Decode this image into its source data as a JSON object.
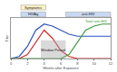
{
  "chart_data": {
    "type": "line",
    "x": [
      0,
      1,
      2,
      3,
      4,
      5,
      6,
      7,
      8,
      9,
      10,
      11,
      12
    ],
    "series": [
      {
        "color": "#d42a2a",
        "values": [
          0,
          0,
          1,
          4,
          7,
          5,
          2,
          0.5,
          0,
          0,
          0,
          0,
          0
        ]
      },
      {
        "color": "#2a52be",
        "values": [
          0,
          0.5,
          3,
          7,
          8.5,
          8,
          7,
          6,
          5.5,
          5.5,
          5.5,
          5.5,
          5.5
        ]
      },
      {
        "name": "Total anti-HIV",
        "color": "#3a9a3a",
        "values": [
          0,
          0,
          0,
          0,
          0,
          0,
          0,
          1,
          4,
          7,
          8,
          8.5,
          8.5
        ]
      }
    ],
    "xlabel": "Weeks after Exposure",
    "ylabel": "Titer",
    "annotations": [
      "Symptoms",
      "HIVAg",
      "anti-HIV",
      "Window Period"
    ],
    "xlim": [
      0,
      12
    ],
    "xticks": [
      0,
      2,
      4,
      6,
      8,
      10,
      12
    ],
    "ylim": [
      0,
      10
    ],
    "yticks": [],
    "tick_labels": "x",
    "grid": false
  }
}
